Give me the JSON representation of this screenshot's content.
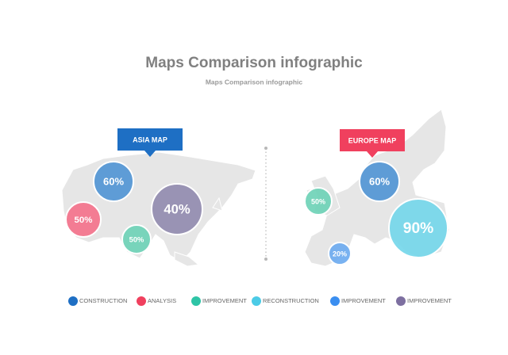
{
  "header": {
    "title": "Maps Comparison infographic",
    "subtitle": "Maps Comparison infographic"
  },
  "maps": [
    {
      "label": "ASIA MAP",
      "color": "#1e6fc4",
      "bubbles": [
        {
          "label": "60%",
          "color": "#4f94d4"
        },
        {
          "label": "50%",
          "color": "#f4708a"
        },
        {
          "label": "40%",
          "color": "#9089ae"
        },
        {
          "label": "50%",
          "color": "#6cd1b6"
        }
      ]
    },
    {
      "label": "EUROPE MAP",
      "color": "#f0405e",
      "bubbles": [
        {
          "label": "50%",
          "color": "#6cd1b6"
        },
        {
          "label": "60%",
          "color": "#4f94d4"
        },
        {
          "label": "90%",
          "color": "#72d6ea"
        },
        {
          "label": "20%",
          "color": "#6aaaf0"
        }
      ]
    }
  ],
  "legend": [
    {
      "label": "CONSTRUCTION",
      "color": "#1e6fc4"
    },
    {
      "label": "ANALYSIS",
      "color": "#f0405e"
    },
    {
      "label": "IMPROVEMENT",
      "color": "#2ec4a6"
    },
    {
      "label": "RECONSTRUCTION",
      "color": "#4ccbe6"
    },
    {
      "label": "IMPROVEMENT",
      "color": "#3a8ef0"
    },
    {
      "label": "IMPROVEMENT",
      "color": "#7d6fa0"
    }
  ]
}
